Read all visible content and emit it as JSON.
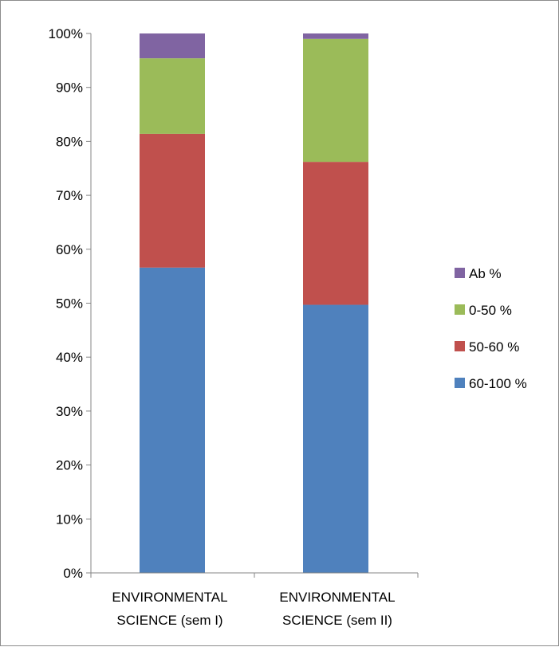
{
  "chart_data": {
    "type": "bar",
    "stacked": true,
    "percent_stacked": true,
    "categories": [
      [
        "ENVIRONMENTAL",
        "SCIENCE (sem I)"
      ],
      [
        "ENVIRONMENTAL",
        "SCIENCE  (sem II)"
      ]
    ],
    "series": [
      {
        "name": "60-100 %",
        "color": "#4f81bd",
        "values": [
          56.6,
          49.7
        ]
      },
      {
        "name": "50-60 %",
        "color": "#c0504d",
        "values": [
          24.8,
          26.5
        ]
      },
      {
        "name": "0-50 %",
        "color": "#9bbb59",
        "values": [
          14.0,
          22.8
        ]
      },
      {
        "name": "Ab %",
        "color": "#8064a2",
        "values": [
          4.6,
          1.0
        ]
      }
    ],
    "y_ticks": [
      "0%",
      "10%",
      "20%",
      "30%",
      "40%",
      "50%",
      "60%",
      "70%",
      "80%",
      "90%",
      "100%"
    ],
    "ylim": [
      0,
      100
    ],
    "legend_position": "right",
    "legend_order": [
      "Ab %",
      "0-50 %",
      "50-60 %",
      "60-100 %"
    ],
    "grid": false
  }
}
